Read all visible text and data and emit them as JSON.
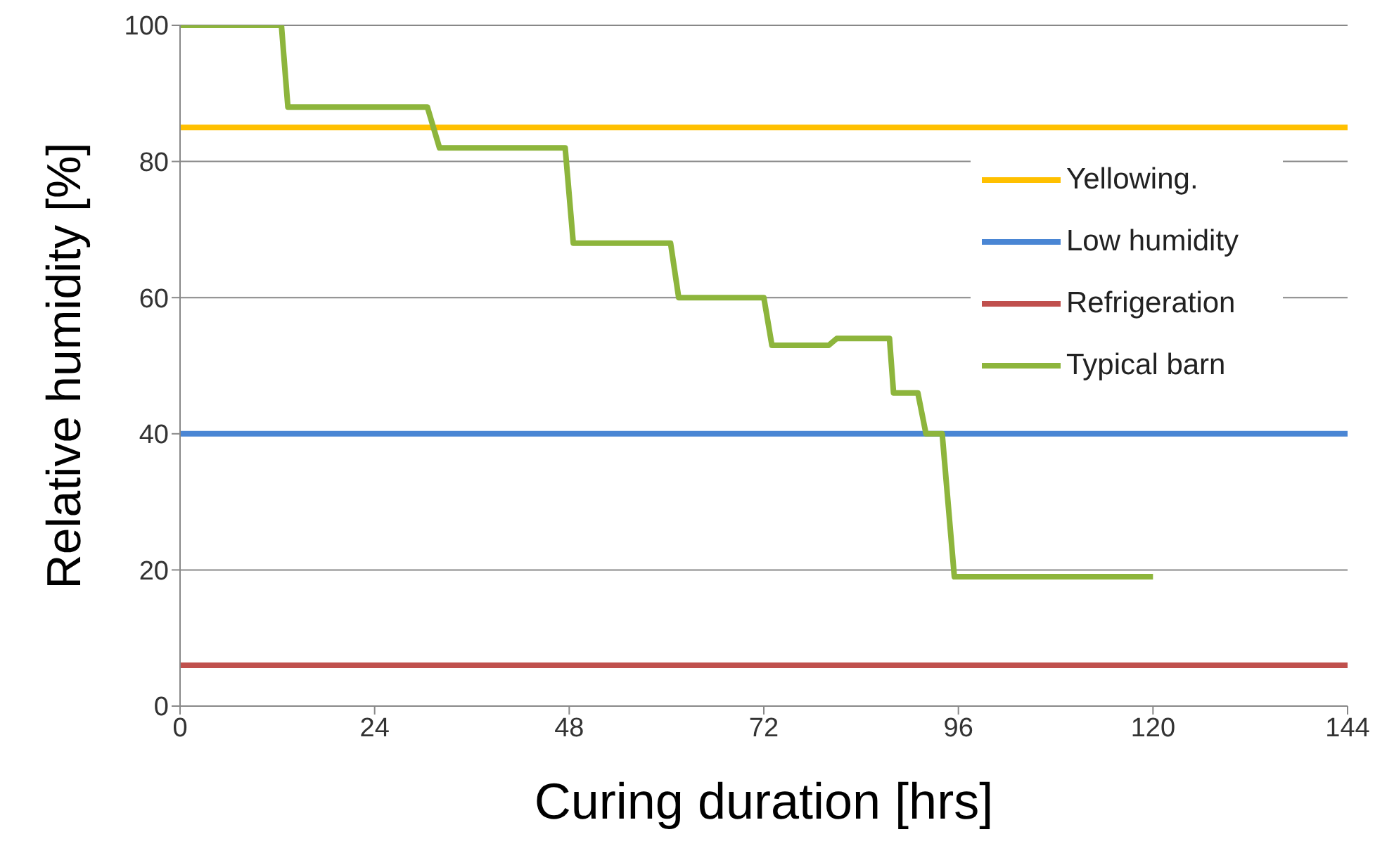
{
  "chart_data": {
    "type": "line",
    "xlabel": "Curing duration [hrs]",
    "ylabel": "Relative humidity [%]",
    "xlim": [
      0,
      144
    ],
    "xticks": [
      0,
      24,
      48,
      72,
      96,
      120,
      144
    ],
    "ylim": [
      0,
      100
    ],
    "yticks": [
      0,
      20,
      40,
      60,
      80,
      100
    ],
    "grid": "y",
    "legend": "right",
    "marker": "none",
    "line_style": "solid",
    "series": [
      {
        "name": "Yellowing.",
        "color": "#ffc000",
        "x": [
          0,
          144
        ],
        "values": [
          85,
          85
        ]
      },
      {
        "name": "Low humidity",
        "color": "#4a86d4",
        "x": [
          0,
          144
        ],
        "values": [
          40,
          40
        ]
      },
      {
        "name": "Refrigeration",
        "color": "#c0504d",
        "x": [
          0,
          144
        ],
        "values": [
          6,
          6
        ]
      },
      {
        "name": "Typical barn",
        "color": "#8db53c",
        "x": [
          0,
          12.5,
          13.3,
          30.5,
          32,
          47.5,
          48.5,
          60.5,
          61.5,
          72,
          73,
          80,
          81,
          87.5,
          88,
          91,
          92,
          94,
          95.5,
          120
        ],
        "values": [
          100,
          100,
          88,
          88,
          82,
          82,
          68,
          68,
          60,
          60,
          53,
          53,
          54,
          54,
          46,
          46,
          40,
          40,
          19,
          19
        ]
      }
    ]
  }
}
